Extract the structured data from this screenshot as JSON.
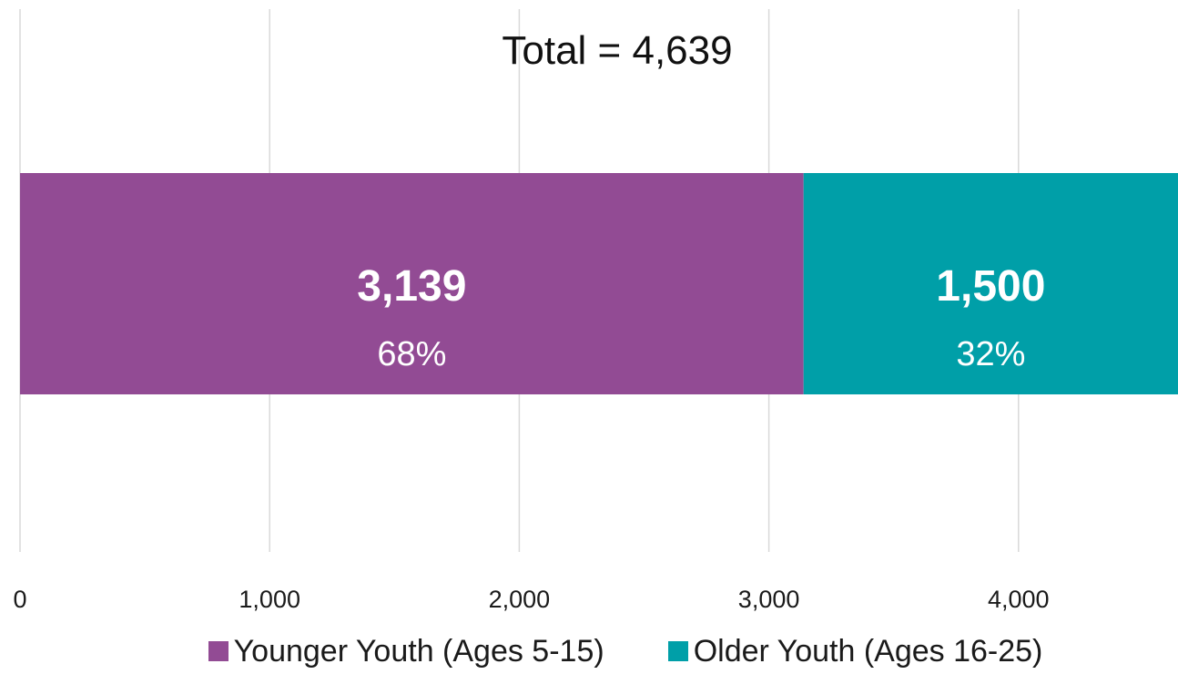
{
  "chart_data": {
    "type": "bar",
    "orientation": "horizontal",
    "stacked": true,
    "title": "Total = 4,639",
    "xlim": [
      0,
      4639
    ],
    "x_ticks": [
      0,
      1000,
      2000,
      3000,
      4000
    ],
    "x_tick_labels": [
      "0",
      "1,000",
      "2,000",
      "3,000",
      "4,000"
    ],
    "grid": true,
    "legend_position": "bottom",
    "series": [
      {
        "name": "Younger Youth (Ages 5-15)",
        "value": 3139,
        "value_label": "3,139",
        "percent_label": "68%",
        "color": "#924B94"
      },
      {
        "name": "Older Youth (Ages 16-25)",
        "value": 1500,
        "value_label": "1,500",
        "percent_label": "32%",
        "color": "#009FA8"
      }
    ]
  }
}
